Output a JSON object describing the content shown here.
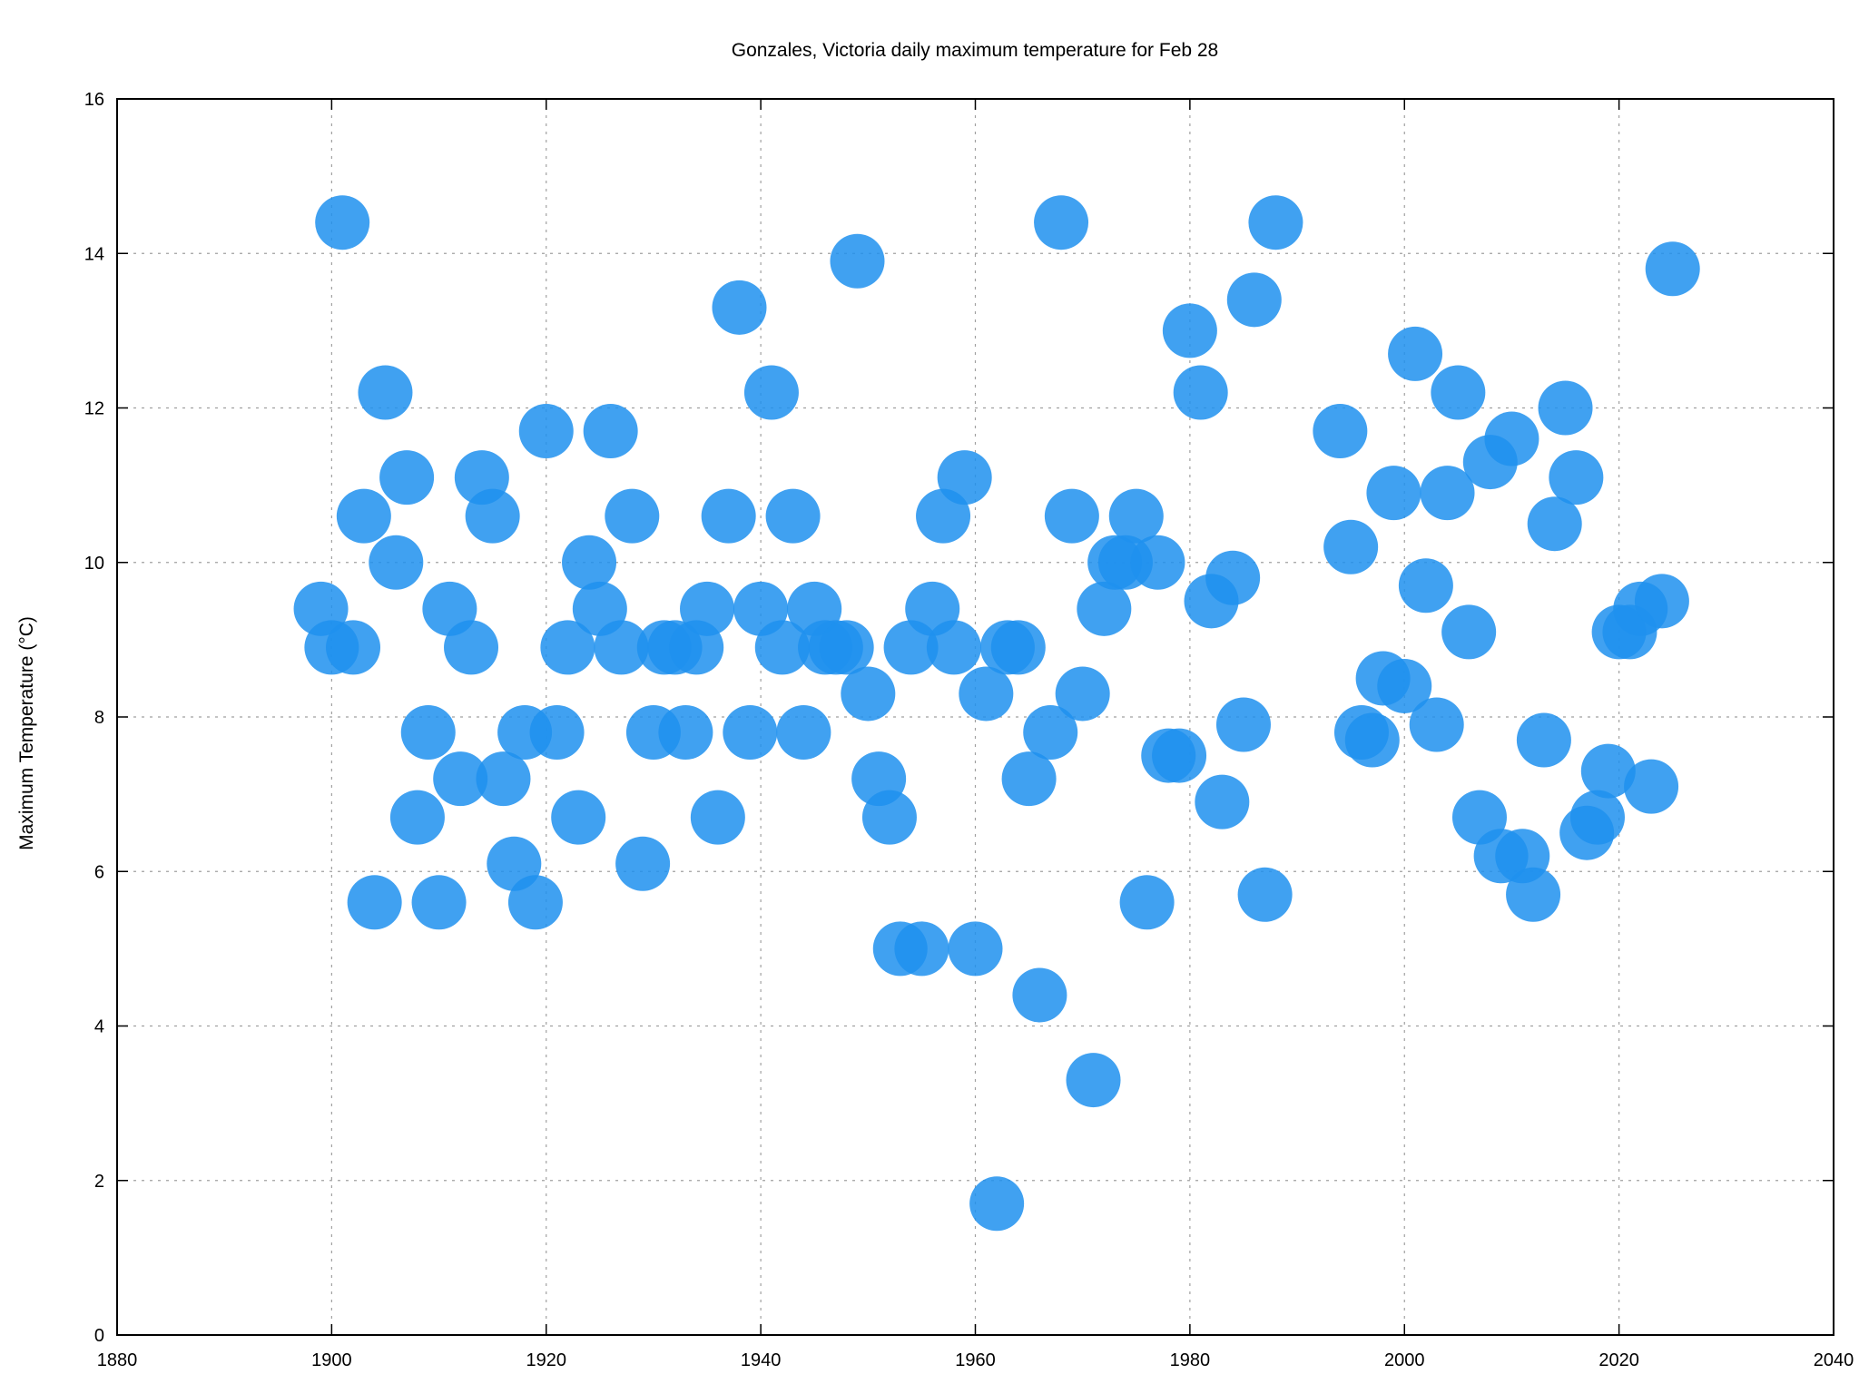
{
  "chart_data": {
    "type": "scatter",
    "title": "Gonzales, Victoria daily maximum temperature for Feb 28",
    "xlabel": "",
    "ylabel": "Maximum Temperature (°C)",
    "xlim": [
      1880,
      2040
    ],
    "ylim": [
      0,
      16
    ],
    "x_ticks": [
      "1880",
      "1900",
      "1920",
      "1940",
      "1960",
      "1980",
      "2000",
      "2020",
      "2040"
    ],
    "y_ticks": [
      "0",
      "2",
      "4",
      "6",
      "8",
      "10",
      "12",
      "14",
      "16"
    ],
    "grid": true,
    "marker_color": "#1e90ee",
    "marker_opacity": 0.85,
    "series": [
      {
        "points": [
          [
            1899,
            9.4
          ],
          [
            1900,
            8.9
          ],
          [
            1901,
            14.4
          ],
          [
            1902,
            8.9
          ],
          [
            1903,
            10.6
          ],
          [
            1904,
            5.6
          ],
          [
            1905,
            12.2
          ],
          [
            1906,
            10.0
          ],
          [
            1907,
            11.1
          ],
          [
            1908,
            6.7
          ],
          [
            1909,
            7.8
          ],
          [
            1910,
            5.6
          ],
          [
            1911,
            9.4
          ],
          [
            1912,
            7.2
          ],
          [
            1913,
            8.9
          ],
          [
            1914,
            11.1
          ],
          [
            1915,
            10.6
          ],
          [
            1916,
            7.2
          ],
          [
            1917,
            6.1
          ],
          [
            1918,
            7.8
          ],
          [
            1919,
            5.6
          ],
          [
            1920,
            11.7
          ],
          [
            1921,
            7.8
          ],
          [
            1922,
            8.9
          ],
          [
            1923,
            6.7
          ],
          [
            1924,
            10.0
          ],
          [
            1925,
            9.4
          ],
          [
            1926,
            11.7
          ],
          [
            1927,
            8.9
          ],
          [
            1928,
            10.6
          ],
          [
            1929,
            6.1
          ],
          [
            1930,
            7.8
          ],
          [
            1931,
            8.9
          ],
          [
            1932,
            8.9
          ],
          [
            1933,
            7.8
          ],
          [
            1934,
            8.9
          ],
          [
            1935,
            9.4
          ],
          [
            1936,
            6.7
          ],
          [
            1937,
            10.6
          ],
          [
            1938,
            13.3
          ],
          [
            1939,
            7.8
          ],
          [
            1940,
            9.4
          ],
          [
            1941,
            12.2
          ],
          [
            1942,
            8.9
          ],
          [
            1943,
            10.6
          ],
          [
            1944,
            7.8
          ],
          [
            1945,
            9.4
          ],
          [
            1946,
            8.9
          ],
          [
            1947,
            8.9
          ],
          [
            1948,
            8.9
          ],
          [
            1949,
            13.9
          ],
          [
            1950,
            8.3
          ],
          [
            1951,
            7.2
          ],
          [
            1952,
            6.7
          ],
          [
            1953,
            5.0
          ],
          [
            1954,
            8.9
          ],
          [
            1955,
            5.0
          ],
          [
            1956,
            9.4
          ],
          [
            1957,
            10.6
          ],
          [
            1958,
            8.9
          ],
          [
            1959,
            11.1
          ],
          [
            1960,
            5.0
          ],
          [
            1961,
            8.3
          ],
          [
            1962,
            1.7
          ],
          [
            1963,
            8.9
          ],
          [
            1964,
            8.9
          ],
          [
            1965,
            7.2
          ],
          [
            1966,
            4.4
          ],
          [
            1967,
            7.8
          ],
          [
            1968,
            14.4
          ],
          [
            1969,
            10.6
          ],
          [
            1970,
            8.3
          ],
          [
            1971,
            3.3
          ],
          [
            1972,
            9.4
          ],
          [
            1973,
            10.0
          ],
          [
            1974,
            10.0
          ],
          [
            1975,
            10.6
          ],
          [
            1976,
            5.6
          ],
          [
            1977,
            10.0
          ],
          [
            1978,
            7.5
          ],
          [
            1979,
            7.5
          ],
          [
            1980,
            13.0
          ],
          [
            1981,
            12.2
          ],
          [
            1982,
            9.5
          ],
          [
            1983,
            6.9
          ],
          [
            1984,
            9.8
          ],
          [
            1985,
            7.9
          ],
          [
            1986,
            13.4
          ],
          [
            1987,
            5.7
          ],
          [
            1988,
            14.4
          ],
          [
            1994,
            11.7
          ],
          [
            1995,
            10.2
          ],
          [
            1996,
            7.8
          ],
          [
            1997,
            7.7
          ],
          [
            1998,
            8.5
          ],
          [
            1999,
            10.9
          ],
          [
            2000,
            8.4
          ],
          [
            2001,
            12.7
          ],
          [
            2002,
            9.7
          ],
          [
            2003,
            7.9
          ],
          [
            2004,
            10.9
          ],
          [
            2005,
            12.2
          ],
          [
            2006,
            9.1
          ],
          [
            2007,
            6.7
          ],
          [
            2008,
            11.3
          ],
          [
            2009,
            6.2
          ],
          [
            2010,
            11.6
          ],
          [
            2011,
            6.2
          ],
          [
            2012,
            5.7
          ],
          [
            2013,
            7.7
          ],
          [
            2014,
            10.5
          ],
          [
            2015,
            12.0
          ],
          [
            2016,
            11.1
          ],
          [
            2017,
            6.5
          ],
          [
            2018,
            6.7
          ],
          [
            2019,
            7.3
          ],
          [
            2020,
            9.1
          ],
          [
            2021,
            9.1
          ],
          [
            2022,
            9.4
          ],
          [
            2023,
            7.1
          ],
          [
            2024,
            9.5
          ],
          [
            2025,
            13.8
          ]
        ]
      }
    ]
  }
}
